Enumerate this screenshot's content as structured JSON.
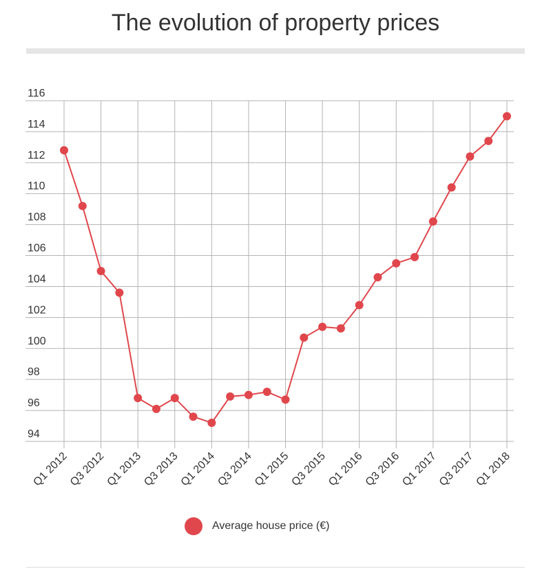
{
  "chart_data": {
    "type": "line",
    "title": "The evolution of property prices",
    "xlabel": "",
    "ylabel": "",
    "ylim": [
      94,
      116
    ],
    "yticks": [
      94,
      96,
      98,
      100,
      102,
      104,
      106,
      108,
      110,
      112,
      114,
      116
    ],
    "x": [
      "Q1 2012",
      "Q2 2012",
      "Q3 2012",
      "Q4 2012",
      "Q1 2013",
      "Q2 2013",
      "Q3 2013",
      "Q4 2013",
      "Q1 2014",
      "Q2 2014",
      "Q3 2014",
      "Q4 2014",
      "Q1 2015",
      "Q2 2015",
      "Q3 2015",
      "Q4 2015",
      "Q1 2016",
      "Q2 2016",
      "Q3 2016",
      "Q4 2016",
      "Q1 2017",
      "Q2 2017",
      "Q3 2017",
      "Q4 2017",
      "Q1 2018"
    ],
    "xtick_labels": [
      "Q1 2012",
      "Q3 2012",
      "Q1 2013",
      "Q3 2013",
      "Q1 2014",
      "Q3 2014",
      "Q1 2015",
      "Q3 2015",
      "Q1 2016",
      "Q3 2016",
      "Q1 2017",
      "Q3 2017",
      "Q1 2018"
    ],
    "series": [
      {
        "name": "Average house price (€)",
        "color": "#e0474c",
        "values": [
          112.8,
          109.2,
          105.0,
          103.6,
          96.8,
          96.1,
          96.8,
          95.6,
          95.2,
          96.9,
          97.0,
          97.2,
          96.7,
          100.7,
          101.4,
          101.3,
          102.8,
          104.6,
          105.5,
          105.9,
          108.2,
          110.4,
          112.4,
          113.4,
          115.0
        ]
      }
    ],
    "grid": true,
    "legend": "bottom-center"
  },
  "colors": {
    "line": "#e0474c",
    "grid": "#b3b3b3",
    "axis": "#555555",
    "text": "#333333"
  }
}
